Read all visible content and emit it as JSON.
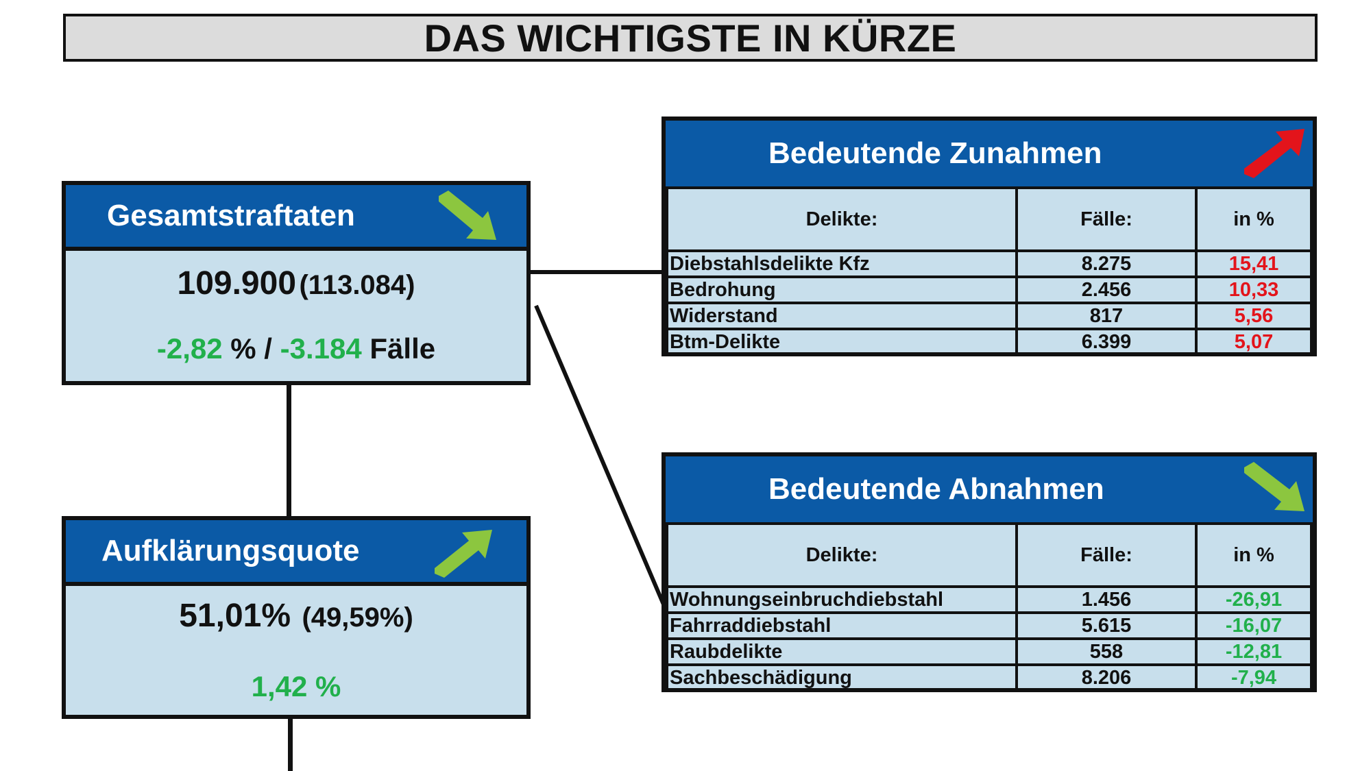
{
  "title": "DAS WICHTIGSTE IN KÜRZE",
  "gesamt": {
    "header": "Gesamtstraftaten",
    "value": "109.900",
    "previous": "(113.084)",
    "change_pct": "-2,82",
    "pct_sign": " % / ",
    "change_cases": "-3.184",
    "cases_label": " Fälle",
    "arrow_icon": "arrow-down-right-icon"
  },
  "quote": {
    "header": "Aufklärungsquote",
    "value": "51,01%",
    "previous": "(49,59%)",
    "change": "1,42 %",
    "arrow_icon": "arrow-up-right-icon"
  },
  "increases": {
    "header": "Bedeutende Zunahmen",
    "arrow_icon": "arrow-up-right-red-icon",
    "columns": [
      "Delikte:",
      "Fälle:",
      "in %"
    ],
    "rows": [
      {
        "delikt": "Diebstahlsdelikte Kfz",
        "faelle": "8.275",
        "pct": "15,41"
      },
      {
        "delikt": "Bedrohung",
        "faelle": "2.456",
        "pct": "10,33"
      },
      {
        "delikt": "Widerstand",
        "faelle": "817",
        "pct": "5,56"
      },
      {
        "delikt": "Btm-Delikte",
        "faelle": "6.399",
        "pct": "5,07"
      }
    ]
  },
  "decreases": {
    "header": "Bedeutende Abnahmen",
    "arrow_icon": "arrow-down-right-green-icon",
    "columns": [
      "Delikte:",
      "Fälle:",
      "in %"
    ],
    "rows": [
      {
        "delikt": "Wohnungseinbruchdiebstahl",
        "faelle": "1.456",
        "pct": "-26,91"
      },
      {
        "delikt": "Fahrraddiebstahl",
        "faelle": "5.615",
        "pct": "-16,07"
      },
      {
        "delikt": "Raubdelikte",
        "faelle": "558",
        "pct": "-12,81"
      },
      {
        "delikt": "Sachbeschädigung",
        "faelle": "8.206",
        "pct": "-7,94"
      }
    ]
  },
  "colors": {
    "header_blue": "#0b5aa6",
    "box_fill": "#c8dfec",
    "positive_green": "#21b04b",
    "negative_red": "#e3141b",
    "arrow_green": "#8cc63f"
  }
}
